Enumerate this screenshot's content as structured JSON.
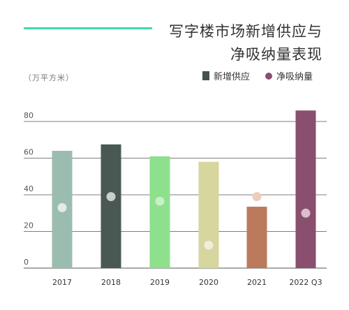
{
  "header": {
    "title_line1": "写字楼市场新增供应与",
    "title_line2": "净吸纳量表现",
    "unit": "（万平方米）"
  },
  "colors": {
    "accent": "#3fd8b0",
    "grid": "#555555",
    "axis_text": "#555555"
  },
  "legend": {
    "supply_label": "新增供应",
    "supply_color": "#44524f",
    "absorb_label": "净吸纳量",
    "absorb_color": "#8a4e6e"
  },
  "chart_data": {
    "type": "bar",
    "title": "写字楼市场新增供应与净吸纳量表现",
    "ylabel": "（万平方米）",
    "ylim": [
      0,
      90
    ],
    "yticks": [
      0,
      20,
      40,
      60,
      80
    ],
    "grid": true,
    "legend_position": "top-right",
    "categories": [
      "2017",
      "2018",
      "2019",
      "2020",
      "2021",
      "2022 Q3"
    ],
    "series": [
      {
        "name": "新增供应",
        "type": "bar",
        "values": [
          64,
          67.5,
          61,
          58,
          33.5,
          86
        ],
        "colors": [
          "#9bbdb0",
          "#4a5854",
          "#8ee08c",
          "#d6d69e",
          "#bb7a5c",
          "#8a4e6e"
        ]
      },
      {
        "name": "净吸纳量",
        "type": "scatter",
        "values": [
          33,
          39,
          36.5,
          12.5,
          39,
          30
        ],
        "colors": [
          "#e4eae7",
          "#c9cecc",
          "#c8f0c6",
          "#eeeedc",
          "#eccdbb",
          "#d8bfcb"
        ]
      }
    ]
  }
}
